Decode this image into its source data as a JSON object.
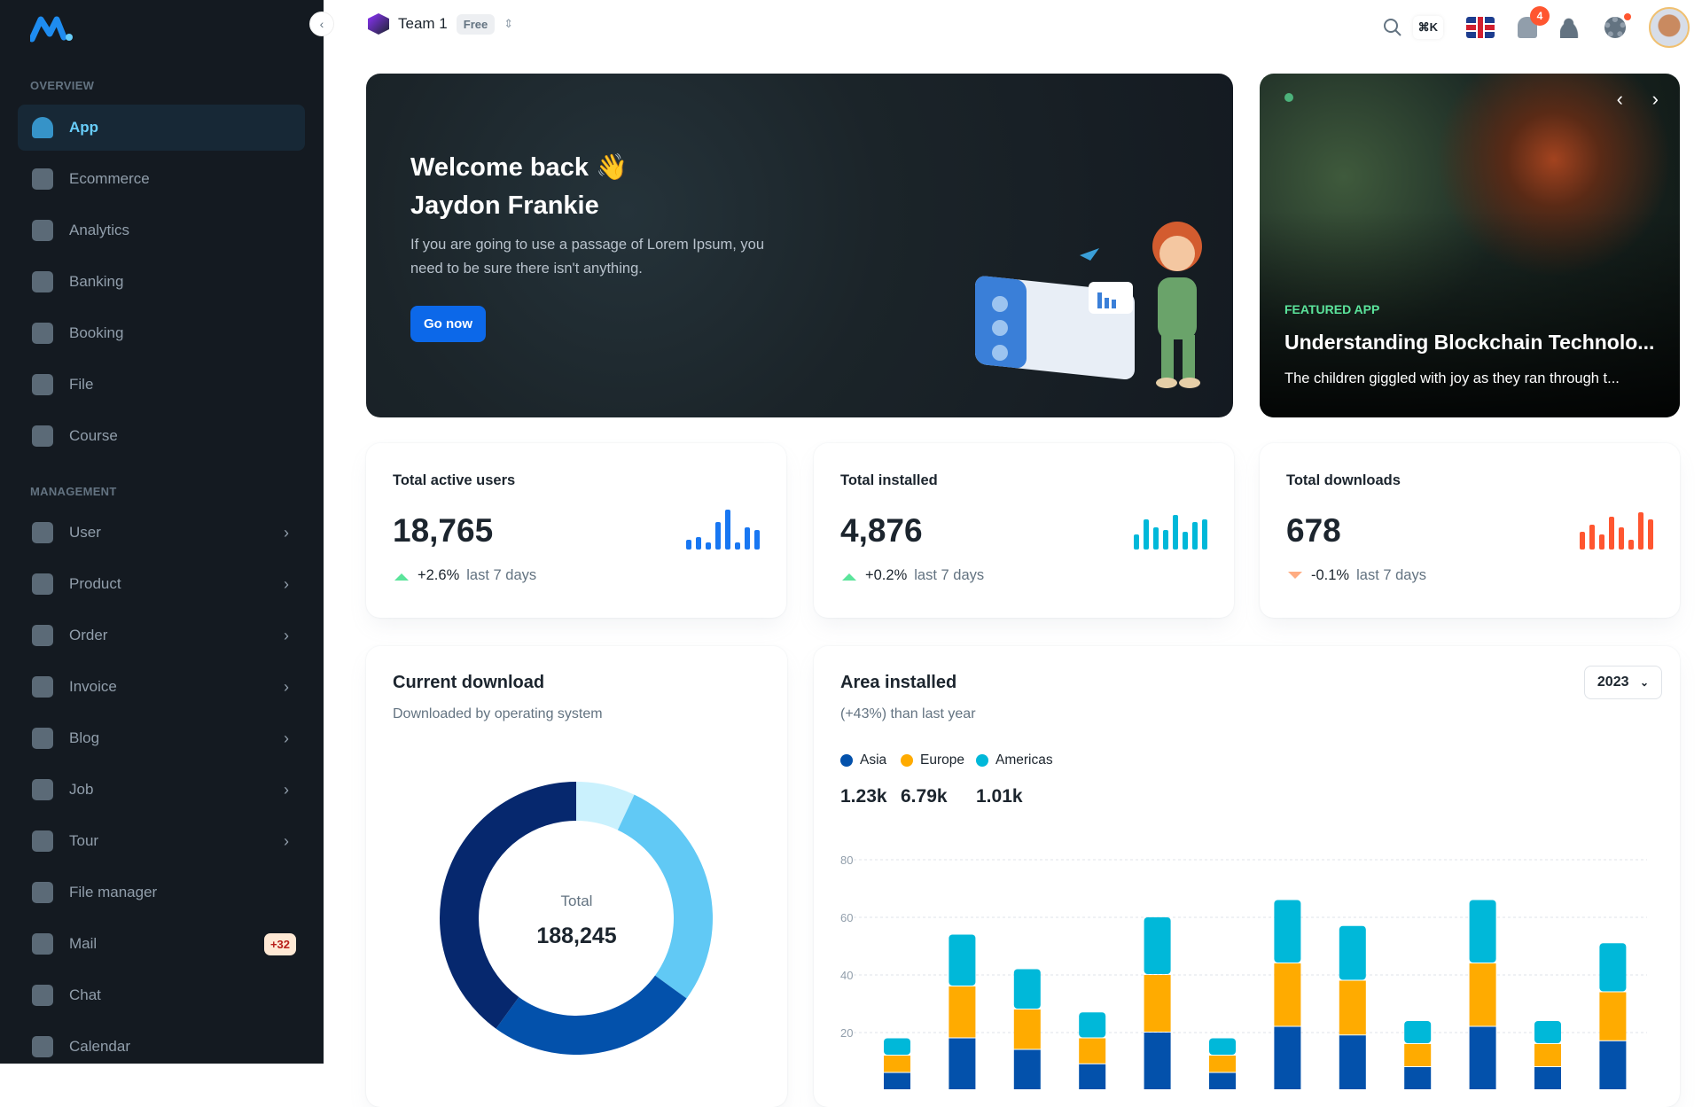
{
  "sidebar": {
    "overview_label": "OVERVIEW",
    "management_label": "MANAGEMENT",
    "overview_items": [
      {
        "label": "App",
        "icon": "dashboard-icon",
        "active": true
      },
      {
        "label": "Ecommerce",
        "icon": "bag-icon"
      },
      {
        "label": "Analytics",
        "icon": "analytics-icon"
      },
      {
        "label": "Banking",
        "icon": "bank-icon"
      },
      {
        "label": "Booking",
        "icon": "booking-icon"
      },
      {
        "label": "File",
        "icon": "file-icon"
      },
      {
        "label": "Course",
        "icon": "course-icon"
      }
    ],
    "management_items": [
      {
        "label": "User",
        "icon": "user-icon",
        "chevron": true
      },
      {
        "label": "Product",
        "icon": "product-icon",
        "chevron": true
      },
      {
        "label": "Order",
        "icon": "cart-icon",
        "chevron": true
      },
      {
        "label": "Invoice",
        "icon": "invoice-icon",
        "chevron": true
      },
      {
        "label": "Blog",
        "icon": "blog-icon",
        "chevron": true
      },
      {
        "label": "Job",
        "icon": "job-icon",
        "chevron": true
      },
      {
        "label": "Tour",
        "icon": "tour-icon",
        "chevron": true
      },
      {
        "label": "File manager",
        "icon": "folder-icon"
      },
      {
        "label": "Mail",
        "icon": "mail-icon",
        "badge": "+32"
      },
      {
        "label": "Chat",
        "icon": "chat-icon"
      },
      {
        "label": "Calendar",
        "icon": "calendar-icon"
      }
    ]
  },
  "topbar": {
    "team": "Team 1",
    "plan": "Free",
    "shortcut": "⌘K",
    "notifications": "4"
  },
  "hero": {
    "title_line1": "Welcome back 👋",
    "title_line2": "Jaydon Frankie",
    "text": "If you are going to use a passage of Lorem Ipsum, you need to be sure there isn't anything.",
    "button": "Go now"
  },
  "featured": {
    "label": "FEATURED APP",
    "title": "Understanding Blockchain Technolo...",
    "description": "The children giggled with joy as they ran through t..."
  },
  "stats": [
    {
      "title": "Total active users",
      "value": "18,765",
      "change": "+2.6%",
      "period": "last 7 days",
      "trend": "up",
      "color": "#1877F2",
      "bars": [
        20,
        25,
        15,
        55,
        80,
        15,
        45,
        40
      ]
    },
    {
      "title": "Total installed",
      "value": "4,876",
      "change": "+0.2%",
      "period": "last 7 days",
      "trend": "up",
      "color": "#00B8D9",
      "bars": [
        30,
        60,
        45,
        40,
        70,
        35,
        55,
        60
      ]
    },
    {
      "title": "Total downloads",
      "value": "678",
      "change": "-0.1%",
      "period": "last 7 days",
      "trend": "down",
      "color": "#FF5630",
      "bars": [
        35,
        50,
        30,
        65,
        45,
        20,
        75,
        60
      ]
    }
  ],
  "current_download": {
    "title": "Current download",
    "subtitle": "Downloaded by operating system",
    "total_label": "Total",
    "total": "188,245"
  },
  "area_installed": {
    "title": "Area installed",
    "subtitle": "(+43%) than last year",
    "year": "2023",
    "legend": [
      {
        "name": "Asia",
        "value": "1.23k",
        "color": "#0351AB"
      },
      {
        "name": "Europe",
        "value": "6.79k",
        "color": "#FFAB00"
      },
      {
        "name": "Americas",
        "value": "1.01k",
        "color": "#00B8D9"
      }
    ]
  },
  "chart_data": [
    {
      "type": "pie",
      "donut": true,
      "values": [
        7,
        28,
        25,
        40
      ],
      "colors": [
        "#CAF1FD",
        "#61C9F5",
        "#0351AB",
        "#06286E"
      ]
    },
    {
      "type": "bar",
      "stacked": true,
      "ylim": [
        0,
        80
      ],
      "yticks": [
        20,
        40,
        60,
        80
      ],
      "grid": true,
      "legend": "top-left",
      "series": [
        {
          "name": "Asia",
          "color": "#0351AB",
          "values": [
            6,
            18,
            14,
            9,
            20,
            6,
            22,
            19,
            8,
            22,
            8,
            17
          ]
        },
        {
          "name": "Europe",
          "color": "#FFAB00",
          "values": [
            6,
            18,
            14,
            9,
            20,
            6,
            22,
            19,
            8,
            22,
            8,
            17
          ]
        },
        {
          "name": "Americas",
          "color": "#00B8D9",
          "values": [
            6,
            18,
            14,
            9,
            20,
            6,
            22,
            19,
            8,
            22,
            8,
            17
          ]
        }
      ]
    }
  ]
}
